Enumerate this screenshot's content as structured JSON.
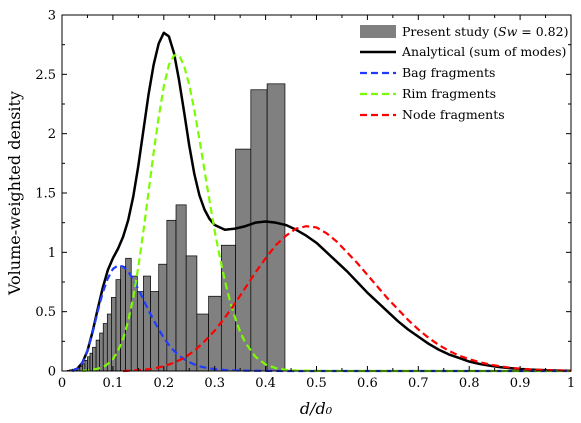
{
  "chart_data": {
    "type": "bar",
    "xlabel": "d/d₀",
    "ylabel": "Volume-weighted density",
    "xlim": [
      0,
      1
    ],
    "ylim": [
      0,
      3
    ],
    "xticks": [
      "0",
      "0.1",
      "0.2",
      "0.3",
      "0.4",
      "0.5",
      "0.6",
      "0.7",
      "0.8",
      "0.9",
      "1"
    ],
    "yticks": [
      "0",
      "0.5",
      "1",
      "1.5",
      "2",
      "2.5",
      "3"
    ],
    "legend_position": "top-right",
    "grid": false,
    "histogram": {
      "name": "Present study (Sw = 0.82)",
      "color": "#808080",
      "bins": [
        {
          "x0": 0.0,
          "x1": 0.005,
          "value": 0.0
        },
        {
          "x0": 0.005,
          "x1": 0.01,
          "value": 0.0
        },
        {
          "x0": 0.01,
          "x1": 0.015,
          "value": 0.005
        },
        {
          "x0": 0.015,
          "x1": 0.02,
          "value": 0.01
        },
        {
          "x0": 0.02,
          "x1": 0.025,
          "value": 0.015
        },
        {
          "x0": 0.025,
          "x1": 0.03,
          "value": 0.02
        },
        {
          "x0": 0.03,
          "x1": 0.035,
          "value": 0.03
        },
        {
          "x0": 0.035,
          "x1": 0.04,
          "value": 0.04
        },
        {
          "x0": 0.04,
          "x1": 0.045,
          "value": 0.06
        },
        {
          "x0": 0.045,
          "x1": 0.05,
          "value": 0.09
        },
        {
          "x0": 0.05,
          "x1": 0.055,
          "value": 0.12
        },
        {
          "x0": 0.055,
          "x1": 0.06,
          "value": 0.15
        },
        {
          "x0": 0.06,
          "x1": 0.067,
          "value": 0.2
        },
        {
          "x0": 0.067,
          "x1": 0.074,
          "value": 0.26
        },
        {
          "x0": 0.074,
          "x1": 0.081,
          "value": 0.32
        },
        {
          "x0": 0.081,
          "x1": 0.089,
          "value": 0.4
        },
        {
          "x0": 0.089,
          "x1": 0.097,
          "value": 0.48
        },
        {
          "x0": 0.097,
          "x1": 0.106,
          "value": 0.62
        },
        {
          "x0": 0.106,
          "x1": 0.115,
          "value": 0.77
        },
        {
          "x0": 0.115,
          "x1": 0.125,
          "value": 0.88
        },
        {
          "x0": 0.125,
          "x1": 0.136,
          "value": 0.95
        },
        {
          "x0": 0.136,
          "x1": 0.148,
          "value": 0.8
        },
        {
          "x0": 0.148,
          "x1": 0.16,
          "value": 0.67
        },
        {
          "x0": 0.16,
          "x1": 0.174,
          "value": 0.8
        },
        {
          "x0": 0.174,
          "x1": 0.19,
          "value": 0.67
        },
        {
          "x0": 0.19,
          "x1": 0.206,
          "value": 0.9
        },
        {
          "x0": 0.206,
          "x1": 0.224,
          "value": 1.27
        },
        {
          "x0": 0.224,
          "x1": 0.244,
          "value": 1.4
        },
        {
          "x0": 0.244,
          "x1": 0.265,
          "value": 0.97
        },
        {
          "x0": 0.265,
          "x1": 0.288,
          "value": 0.48
        },
        {
          "x0": 0.288,
          "x1": 0.313,
          "value": 0.63
        },
        {
          "x0": 0.313,
          "x1": 0.341,
          "value": 1.06
        },
        {
          "x0": 0.341,
          "x1": 0.371,
          "value": 1.87
        },
        {
          "x0": 0.371,
          "x1": 0.403,
          "value": 2.37
        },
        {
          "x0": 0.403,
          "x1": 0.438,
          "value": 2.42
        }
      ]
    },
    "series": [
      {
        "name": "Analytical (sum of modes)",
        "color": "#000000",
        "style": "solid",
        "x": [
          0.02,
          0.03,
          0.04,
          0.05,
          0.06,
          0.07,
          0.08,
          0.09,
          0.1,
          0.11,
          0.12,
          0.13,
          0.14,
          0.15,
          0.16,
          0.17,
          0.18,
          0.19,
          0.2,
          0.21,
          0.22,
          0.23,
          0.24,
          0.25,
          0.26,
          0.27,
          0.28,
          0.29,
          0.3,
          0.32,
          0.34,
          0.36,
          0.38,
          0.4,
          0.42,
          0.44,
          0.46,
          0.48,
          0.5,
          0.52,
          0.54,
          0.56,
          0.58,
          0.6,
          0.62,
          0.64,
          0.66,
          0.68,
          0.7,
          0.72,
          0.74,
          0.76,
          0.78,
          0.8,
          0.82,
          0.84,
          0.86,
          0.88,
          0.9,
          0.92,
          0.94,
          0.96,
          0.98,
          1.0
        ],
        "y": [
          0.0,
          0.02,
          0.07,
          0.17,
          0.33,
          0.52,
          0.7,
          0.85,
          0.95,
          1.03,
          1.13,
          1.27,
          1.47,
          1.73,
          2.03,
          2.33,
          2.58,
          2.76,
          2.85,
          2.82,
          2.68,
          2.45,
          2.18,
          1.9,
          1.66,
          1.48,
          1.36,
          1.28,
          1.23,
          1.19,
          1.2,
          1.22,
          1.25,
          1.26,
          1.25,
          1.23,
          1.19,
          1.14,
          1.08,
          1.0,
          0.92,
          0.84,
          0.75,
          0.66,
          0.58,
          0.5,
          0.42,
          0.35,
          0.29,
          0.23,
          0.18,
          0.14,
          0.11,
          0.08,
          0.06,
          0.045,
          0.033,
          0.024,
          0.017,
          0.012,
          0.008,
          0.005,
          0.003,
          0.002
        ]
      },
      {
        "name": "Bag fragments",
        "color": "#1f3bff",
        "style": "dashed",
        "x": [
          0.02,
          0.03,
          0.04,
          0.05,
          0.06,
          0.07,
          0.08,
          0.09,
          0.1,
          0.11,
          0.12,
          0.13,
          0.14,
          0.15,
          0.16,
          0.17,
          0.18,
          0.19,
          0.2,
          0.21,
          0.22,
          0.23,
          0.24,
          0.25,
          0.26,
          0.27,
          0.28,
          0.29,
          0.3,
          0.32,
          0.34,
          0.36,
          0.38,
          0.4,
          0.45,
          0.5,
          0.6,
          0.7,
          0.8,
          0.9,
          1.0
        ],
        "y": [
          0.0,
          0.02,
          0.07,
          0.17,
          0.32,
          0.5,
          0.66,
          0.78,
          0.86,
          0.89,
          0.88,
          0.84,
          0.77,
          0.69,
          0.6,
          0.51,
          0.43,
          0.35,
          0.28,
          0.22,
          0.17,
          0.13,
          0.1,
          0.075,
          0.055,
          0.04,
          0.03,
          0.022,
          0.016,
          0.009,
          0.005,
          0.003,
          0.002,
          0.001,
          0.0,
          0.0,
          0.0,
          0.0,
          0.0,
          0.0,
          0.0
        ]
      },
      {
        "name": "Rim fragments",
        "color": "#7cfc00",
        "style": "dashed",
        "x": [
          0.04,
          0.06,
          0.08,
          0.09,
          0.1,
          0.11,
          0.12,
          0.13,
          0.14,
          0.15,
          0.16,
          0.17,
          0.18,
          0.19,
          0.2,
          0.21,
          0.22,
          0.23,
          0.24,
          0.25,
          0.26,
          0.27,
          0.28,
          0.29,
          0.3,
          0.31,
          0.32,
          0.33,
          0.34,
          0.35,
          0.36,
          0.38,
          0.4,
          0.42,
          0.44,
          0.46,
          0.5,
          0.6,
          0.7,
          0.8,
          0.9,
          1.0
        ],
        "y": [
          0.0,
          0.01,
          0.03,
          0.06,
          0.1,
          0.17,
          0.27,
          0.42,
          0.62,
          0.88,
          1.18,
          1.51,
          1.84,
          2.14,
          2.4,
          2.58,
          2.66,
          2.66,
          2.57,
          2.41,
          2.2,
          1.95,
          1.69,
          1.43,
          1.18,
          0.96,
          0.76,
          0.59,
          0.45,
          0.33,
          0.24,
          0.12,
          0.055,
          0.024,
          0.01,
          0.004,
          0.001,
          0.0,
          0.0,
          0.0,
          0.0,
          0.0
        ]
      },
      {
        "name": "Node fragments",
        "color": "#ff0000",
        "style": "dashed",
        "x": [
          0.12,
          0.14,
          0.16,
          0.18,
          0.2,
          0.22,
          0.24,
          0.26,
          0.28,
          0.3,
          0.32,
          0.34,
          0.36,
          0.38,
          0.4,
          0.42,
          0.44,
          0.46,
          0.48,
          0.5,
          0.52,
          0.54,
          0.56,
          0.58,
          0.6,
          0.62,
          0.64,
          0.66,
          0.68,
          0.7,
          0.72,
          0.74,
          0.76,
          0.78,
          0.8,
          0.82,
          0.84,
          0.86,
          0.88,
          0.9,
          0.92,
          0.94,
          0.96,
          0.98,
          1.0
        ],
        "y": [
          0.0,
          0.005,
          0.01,
          0.02,
          0.04,
          0.07,
          0.11,
          0.17,
          0.25,
          0.34,
          0.45,
          0.57,
          0.7,
          0.83,
          0.95,
          1.06,
          1.14,
          1.2,
          1.22,
          1.21,
          1.16,
          1.09,
          1.0,
          0.91,
          0.81,
          0.71,
          0.61,
          0.52,
          0.43,
          0.35,
          0.28,
          0.22,
          0.17,
          0.13,
          0.1,
          0.075,
          0.055,
          0.04,
          0.028,
          0.02,
          0.013,
          0.009,
          0.006,
          0.004,
          0.002
        ]
      }
    ]
  },
  "legend": {
    "histogram_prefix": "Present study (",
    "histogram_math": "Sw",
    "histogram_suffix": " = 0.82)",
    "analytical": "Analytical (sum of modes)",
    "bag": "Bag fragments",
    "rim": "Rim fragments",
    "node": "Node fragments"
  }
}
